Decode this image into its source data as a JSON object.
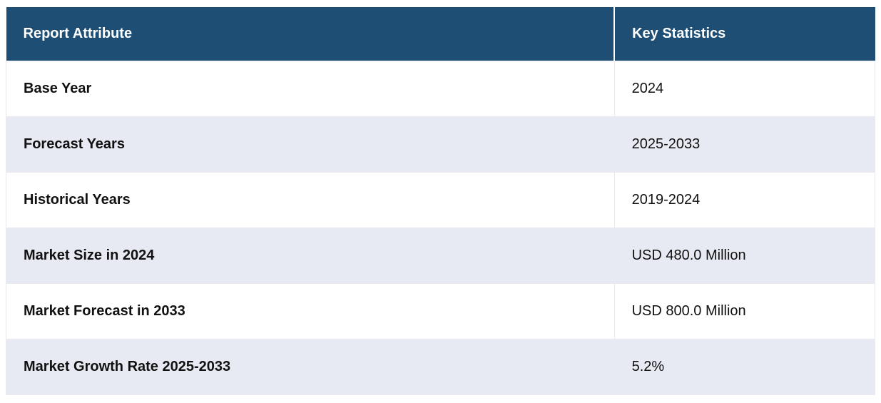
{
  "table": {
    "headers": {
      "attribute": "Report Attribute",
      "statistics": "Key Statistics"
    },
    "rows": [
      {
        "attribute": "Base Year",
        "value": "2024"
      },
      {
        "attribute": "Forecast Years",
        "value": "2025-2033"
      },
      {
        "attribute": "Historical Years",
        "value": "2019-2024"
      },
      {
        "attribute": "Market Size in 2024",
        "value": "USD 480.0 Million"
      },
      {
        "attribute": "Market Forecast in 2033",
        "value": "USD 800.0 Million"
      },
      {
        "attribute": "Market Growth Rate 2025-2033",
        "value": "5.2%"
      }
    ],
    "colors": {
      "header_background": "#1f4e74",
      "header_text": "#ffffff",
      "alt_row_background": "#e7e9f3",
      "row_background": "#ffffff",
      "body_text": "#111111"
    }
  }
}
